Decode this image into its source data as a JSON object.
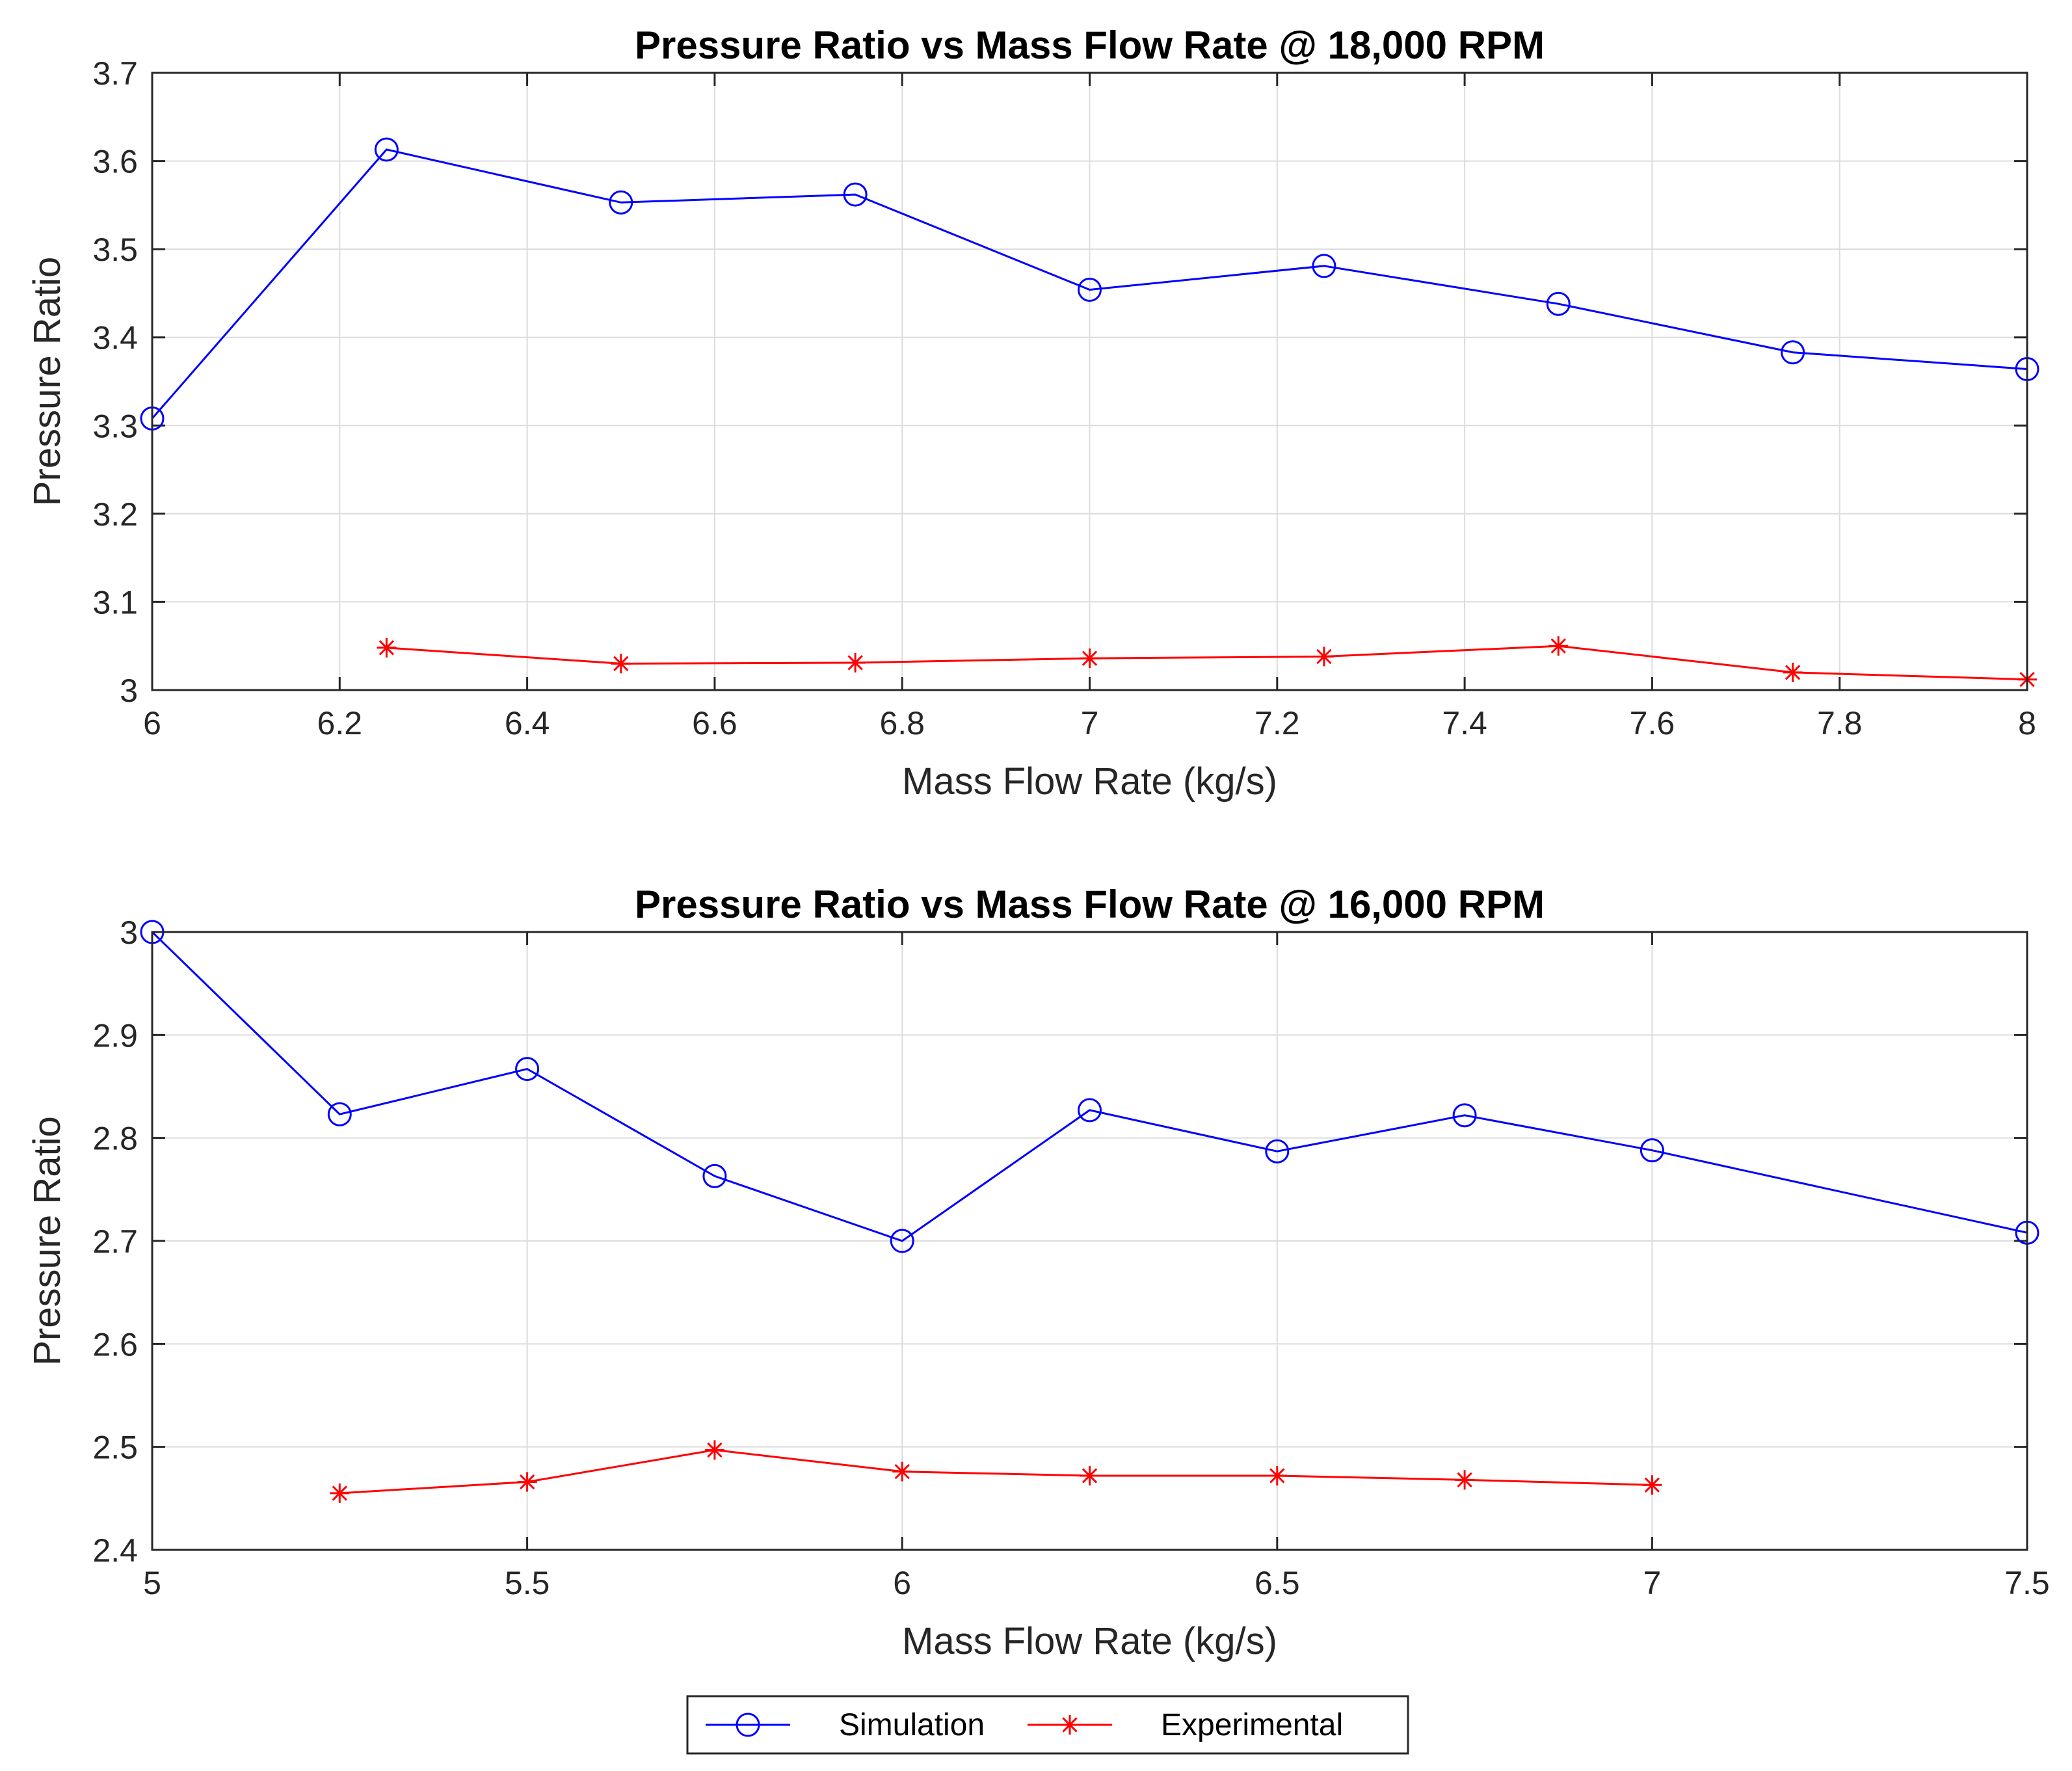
{
  "legend": {
    "entries": [
      {
        "name": "Simulation",
        "color": "#0000ff",
        "marker": "circle"
      },
      {
        "name": "Experimental",
        "color": "#ff0000",
        "marker": "asterisk"
      }
    ],
    "location": "bottom-center"
  },
  "chart_data": [
    {
      "type": "line",
      "title": "Pressure Ratio vs Mass Flow Rate @ 18,000 RPM",
      "xlabel": "Mass Flow Rate (kg/s)",
      "ylabel": "Pressure Ratio",
      "xlim": [
        6,
        8
      ],
      "ylim": [
        3,
        3.7
      ],
      "xticks": [
        6,
        6.2,
        6.4,
        6.6,
        6.8,
        7,
        7.2,
        7.4,
        7.6,
        7.8,
        8
      ],
      "xtick_labels": [
        "6",
        "6.2",
        "6.4",
        "6.6",
        "6.8",
        "7",
        "7.2",
        "7.4",
        "7.6",
        "7.8",
        "8"
      ],
      "yticks": [
        3,
        3.1,
        3.2,
        3.3,
        3.4,
        3.5,
        3.6,
        3.7
      ],
      "ytick_labels": [
        "3",
        "3.1",
        "3.2",
        "3.3",
        "3.4",
        "3.5",
        "3.6",
        "3.7"
      ],
      "grid": true,
      "series": [
        {
          "name": "Simulation",
          "color": "#0000ff",
          "marker": "circle",
          "x": [
            6,
            6.25,
            6.5,
            6.75,
            7,
            7.25,
            7.5,
            7.75,
            8
          ],
          "y": [
            3.308,
            3.613,
            3.553,
            3.562,
            3.454,
            3.481,
            3.438,
            3.383,
            3.364
          ]
        },
        {
          "name": "Experimental",
          "color": "#ff0000",
          "marker": "asterisk",
          "x": [
            6.25,
            6.5,
            6.75,
            7,
            7.25,
            7.5,
            7.75,
            8
          ],
          "y": [
            3.048,
            3.03,
            3.031,
            3.036,
            3.038,
            3.05,
            3.02,
            3.012
          ]
        }
      ]
    },
    {
      "type": "line",
      "title": "Pressure Ratio vs Mass Flow Rate @ 16,000 RPM",
      "xlabel": "Mass Flow Rate (kg/s)",
      "ylabel": "Pressure Ratio",
      "xlim": [
        5,
        7.5
      ],
      "ylim": [
        2.4,
        3
      ],
      "xticks": [
        5,
        5.5,
        6,
        6.5,
        7,
        7.5
      ],
      "xtick_labels": [
        "5",
        "5.5",
        "6",
        "6.5",
        "7",
        "7.5"
      ],
      "yticks": [
        2.4,
        2.5,
        2.6,
        2.7,
        2.8,
        2.9,
        3
      ],
      "ytick_labels": [
        "2.4",
        "2.5",
        "2.6",
        "2.7",
        "2.8",
        "2.9",
        "3"
      ],
      "grid": true,
      "series": [
        {
          "name": "Simulation",
          "color": "#0000ff",
          "marker": "circle",
          "x": [
            5,
            5.25,
            5.5,
            5.75,
            6,
            6.25,
            6.5,
            6.75,
            7,
            7.5
          ],
          "y": [
            3.0,
            2.823,
            2.867,
            2.763,
            2.7,
            2.827,
            2.787,
            2.822,
            2.788,
            2.708
          ]
        },
        {
          "name": "Experimental",
          "color": "#ff0000",
          "marker": "asterisk",
          "x": [
            5.25,
            5.5,
            5.75,
            6,
            6.25,
            6.5,
            6.75,
            7
          ],
          "y": [
            2.455,
            2.466,
            2.497,
            2.476,
            2.472,
            2.472,
            2.468,
            2.463
          ]
        }
      ]
    }
  ]
}
